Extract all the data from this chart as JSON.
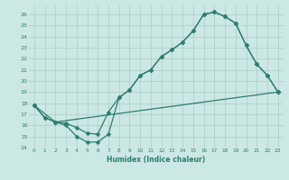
{
  "xlabel": "Humidex (Indice chaleur)",
  "bg_color": "#cce8e4",
  "line_color": "#2d7d6e",
  "grid_color": "#aaccc8",
  "xlim": [
    -0.5,
    23.5
  ],
  "ylim": [
    14,
    26.8
  ],
  "xticks": [
    0,
    1,
    2,
    3,
    4,
    5,
    6,
    7,
    8,
    9,
    10,
    11,
    12,
    13,
    14,
    15,
    16,
    17,
    18,
    19,
    20,
    21,
    22,
    23
  ],
  "yticks": [
    14,
    15,
    16,
    17,
    18,
    19,
    20,
    21,
    22,
    23,
    24,
    25,
    26
  ],
  "line1_x": [
    0,
    1,
    2,
    3,
    4,
    5,
    6,
    7,
    8,
    9,
    10,
    11,
    12,
    13,
    14,
    15,
    16,
    17,
    18,
    19,
    20,
    21,
    22,
    23
  ],
  "line1_y": [
    17.8,
    16.7,
    16.3,
    16.0,
    15.0,
    14.5,
    14.5,
    15.2,
    18.5,
    19.2,
    20.5,
    21.0,
    22.2,
    22.8,
    23.5,
    24.5,
    26.0,
    26.2,
    25.8,
    25.2,
    23.2,
    21.5,
    20.5,
    19.0
  ],
  "line2_x": [
    0,
    1,
    2,
    3,
    4,
    5,
    6,
    7,
    8,
    9,
    10,
    11,
    12,
    13,
    14,
    15,
    16,
    17,
    18,
    19,
    20,
    21,
    22,
    23
  ],
  "line2_y": [
    17.8,
    16.7,
    16.3,
    16.2,
    15.8,
    15.3,
    15.2,
    17.2,
    18.5,
    19.2,
    20.5,
    21.0,
    22.2,
    22.8,
    23.5,
    24.5,
    26.0,
    26.2,
    25.8,
    25.2,
    23.2,
    21.5,
    20.5,
    19.0
  ],
  "line3_x": [
    0,
    2,
    23
  ],
  "line3_y": [
    17.8,
    16.3,
    19.0
  ],
  "marker": "D",
  "markersize": 2.5,
  "linewidth": 0.9
}
